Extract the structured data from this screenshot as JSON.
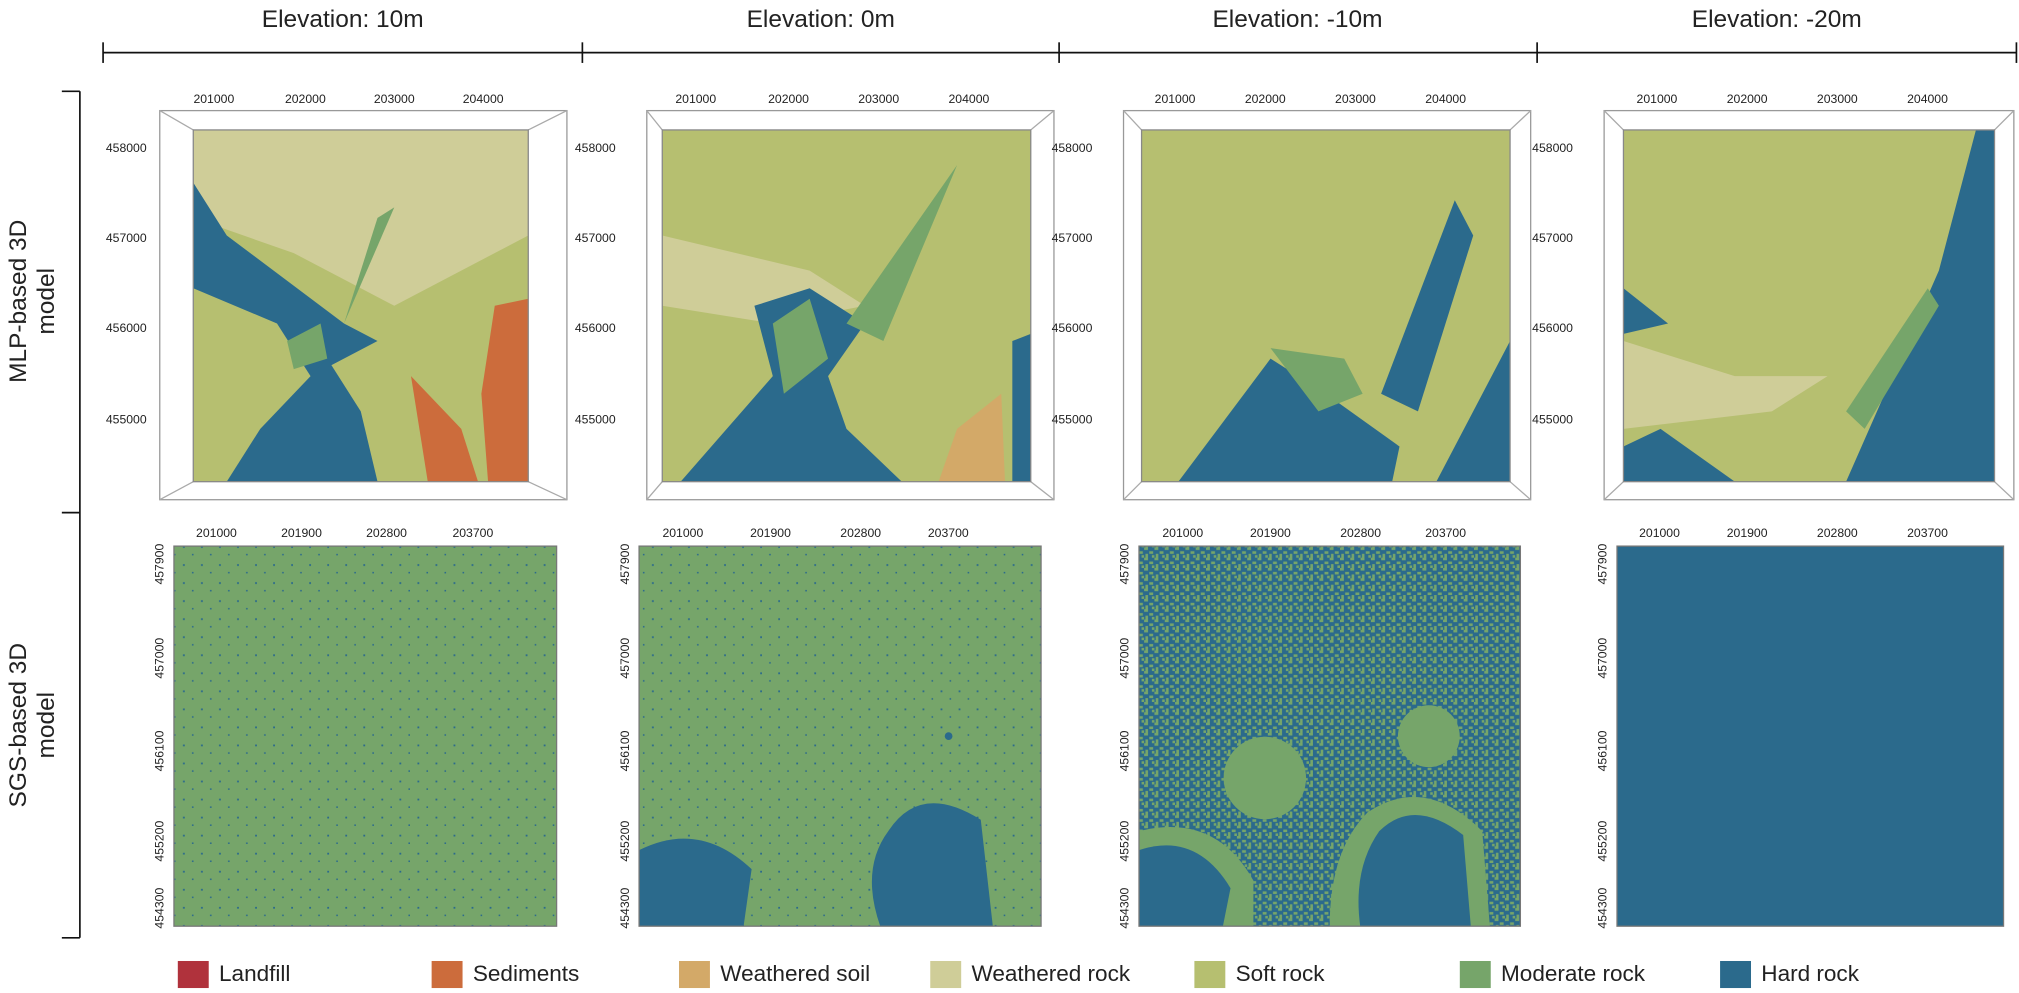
{
  "columns": [
    "Elevation: 10m",
    "Elevation: 0m",
    "Elevation: -10m",
    "Elevation: -20m"
  ],
  "rows": [
    [
      "MLP-based 3D",
      "model"
    ],
    [
      "SGS-based 3D",
      "model"
    ]
  ],
  "panels": {
    "mlp": {
      "x_ticks": [
        "201000",
        "202000",
        "203000",
        "204000"
      ],
      "y_ticks": [
        "458000",
        "457000",
        "456000",
        "455000"
      ]
    },
    "sgs": {
      "x_ticks": [
        "201000",
        "201900",
        "202800",
        "203700"
      ],
      "y_ticks": [
        "457900",
        "457000",
        "456100",
        "455200",
        "454300"
      ]
    }
  },
  "legend": [
    {
      "label": "Landfill",
      "color": "#b0323c"
    },
    {
      "label": "Sediments",
      "color": "#cc6c3c"
    },
    {
      "label": "Weathered soil",
      "color": "#d3a968"
    },
    {
      "label": "Weathered rock",
      "color": "#cfcd98"
    },
    {
      "label": "Soft rock",
      "color": "#b6bf70"
    },
    {
      "label": "Moderate rock",
      "color": "#76a56a"
    },
    {
      "label": "Hard rock",
      "color": "#2b6a8c"
    }
  ]
}
